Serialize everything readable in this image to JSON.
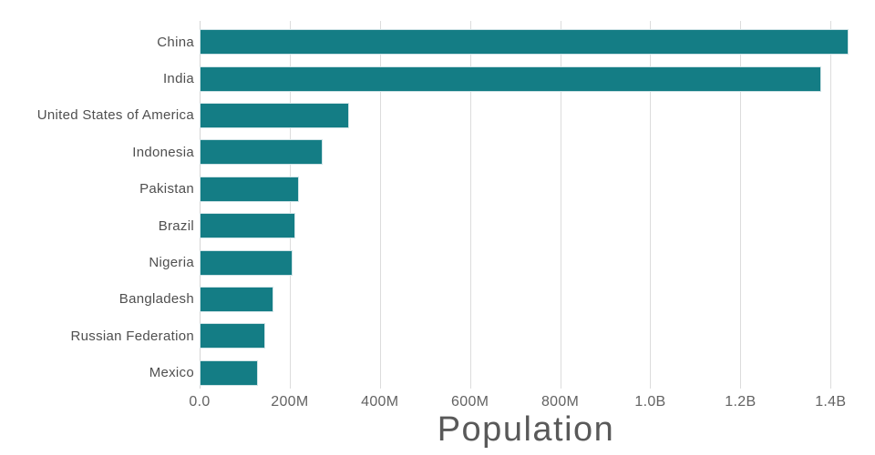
{
  "chart_data": {
    "type": "bar",
    "orientation": "horizontal",
    "title": "Population",
    "xlabel": "Population",
    "ylabel": "",
    "categories": [
      "China",
      "India",
      "United States of America",
      "Indonesia",
      "Pakistan",
      "Brazil",
      "Nigeria",
      "Bangladesh",
      "Russian Federation",
      "Mexico"
    ],
    "values_millions": [
      1439.32,
      1380.0,
      331.0,
      273.52,
      220.89,
      212.56,
      206.14,
      164.69,
      145.93,
      128.93
    ],
    "x_ticks": [
      {
        "value": 0,
        "label": "0.0"
      },
      {
        "value": 200,
        "label": "200M"
      },
      {
        "value": 400,
        "label": "400M"
      },
      {
        "value": 600,
        "label": "600M"
      },
      {
        "value": 800,
        "label": "800M"
      },
      {
        "value": 1000,
        "label": "1.0B"
      },
      {
        "value": 1200,
        "label": "1.2B"
      },
      {
        "value": 1400,
        "label": "1.4B"
      }
    ],
    "xlim_millions": [
      0,
      1448
    ],
    "grid": true,
    "legend": false,
    "colors": {
      "bar": "#147d85",
      "bar_edge": "#cfe3e6",
      "grid": "#dcdcdc",
      "zero_line": "#d4d4d4",
      "category_label": "#4f4f4f",
      "tick_label": "#636363",
      "title": "#595959",
      "background": "#ffffff"
    }
  }
}
